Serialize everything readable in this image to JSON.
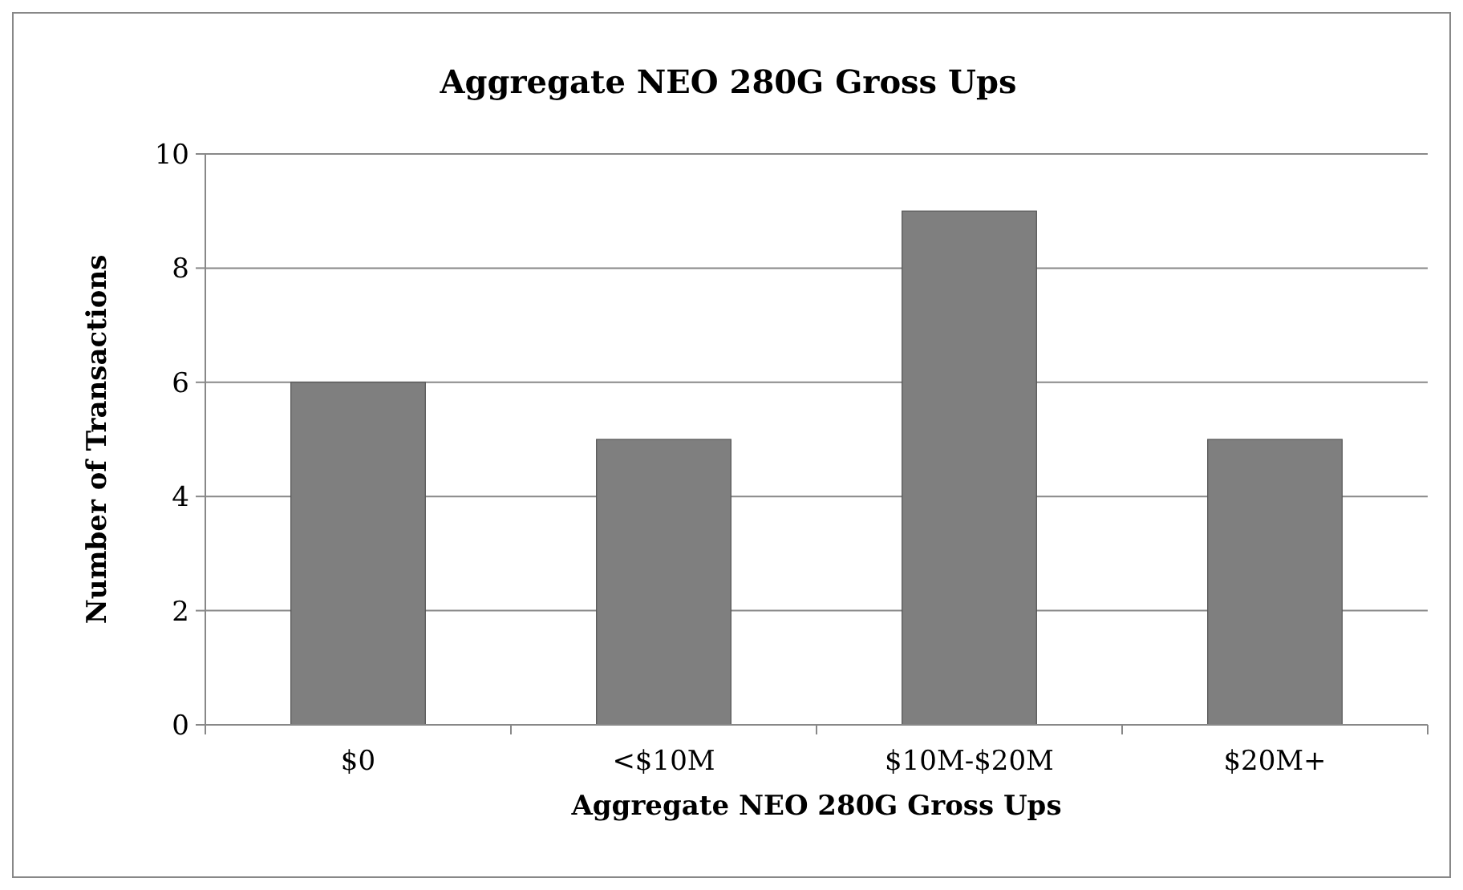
{
  "chart_data": {
    "type": "bar",
    "title": "Aggregate NEO 280G Gross Ups",
    "xlabel": "Aggregate NEO 280G Gross Ups",
    "ylabel": "Number of Transactions",
    "categories": [
      "$0",
      "<$10M",
      "$10M-$20M",
      "$20M+"
    ],
    "values": [
      6,
      5,
      9,
      5
    ],
    "color": "#7f7f7f",
    "ylim": [
      0,
      10
    ],
    "yticks": [
      0,
      2,
      4,
      6,
      8,
      10
    ],
    "grid": "y"
  }
}
